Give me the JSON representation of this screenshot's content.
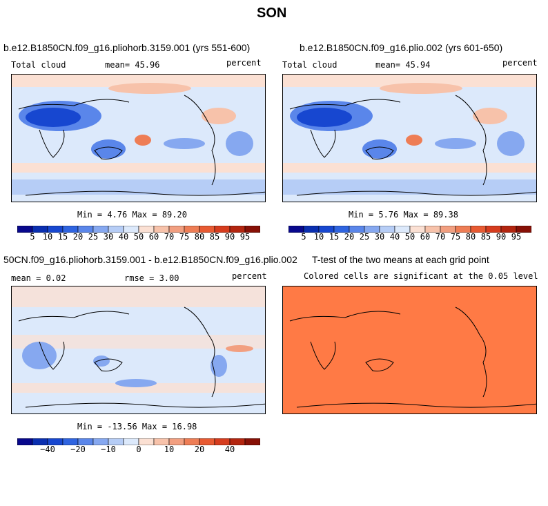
{
  "page_title": "SON",
  "panels": [
    {
      "title": "b.e12.B1850CN.f09_g16.pliohorb.3159.001 (yrs 551-600)",
      "left_label": "Total cloud",
      "center_label": "mean=  45.96",
      "right_label": "percent",
      "minmax": "Min =   4.76 Max =  89.20"
    },
    {
      "title": "b.e12.B1850CN.f09_g16.plio.002 (yrs 601-650)",
      "left_label": "Total cloud",
      "center_label": "mean=  45.94",
      "right_label": "percent",
      "minmax": "Min =   5.76 Max =  89.38"
    },
    {
      "title": "50CN.f09_g16.pliohorb.3159.001 - b.e12.B1850CN.f09_g16.plio.002",
      "left_label": "mean =   0.02",
      "center_label": "rmse =   3.00",
      "right_label": "percent",
      "minmax": "Min = -13.56 Max =  16.98"
    },
    {
      "title": "T-test of the two means at each grid point",
      "center_label": "Colored cells are significant at the 0.05 level"
    }
  ],
  "colorbar_abs": {
    "colors": [
      "#08088c",
      "#0a2fb0",
      "#1747d0",
      "#2f64e0",
      "#5a86ea",
      "#86a8f0",
      "#b6cdf6",
      "#dce9fb",
      "#fbe0d3",
      "#f7c2aa",
      "#f29f80",
      "#ee7d55",
      "#e85a32",
      "#d63c1e",
      "#b3250f",
      "#871006"
    ],
    "labels": [
      "5",
      "10",
      "15",
      "20",
      "25",
      "30",
      "40",
      "50",
      "60",
      "70",
      "75",
      "80",
      "85",
      "90",
      "95"
    ]
  },
  "colorbar_diff": {
    "colors": [
      "#08088c",
      "#0a2fb0",
      "#1747d0",
      "#2f64e0",
      "#5a86ea",
      "#86a8f0",
      "#b6cdf6",
      "#dce9fb",
      "#fbe0d3",
      "#f7c2aa",
      "#f29f80",
      "#ee7d55",
      "#e85a32",
      "#d63c1e",
      "#b3250f",
      "#871006"
    ],
    "labels": [
      "−40",
      "−20",
      "−10",
      "0",
      "10",
      "20",
      "40"
    ]
  },
  "ttest_color": "#ff7a45"
}
